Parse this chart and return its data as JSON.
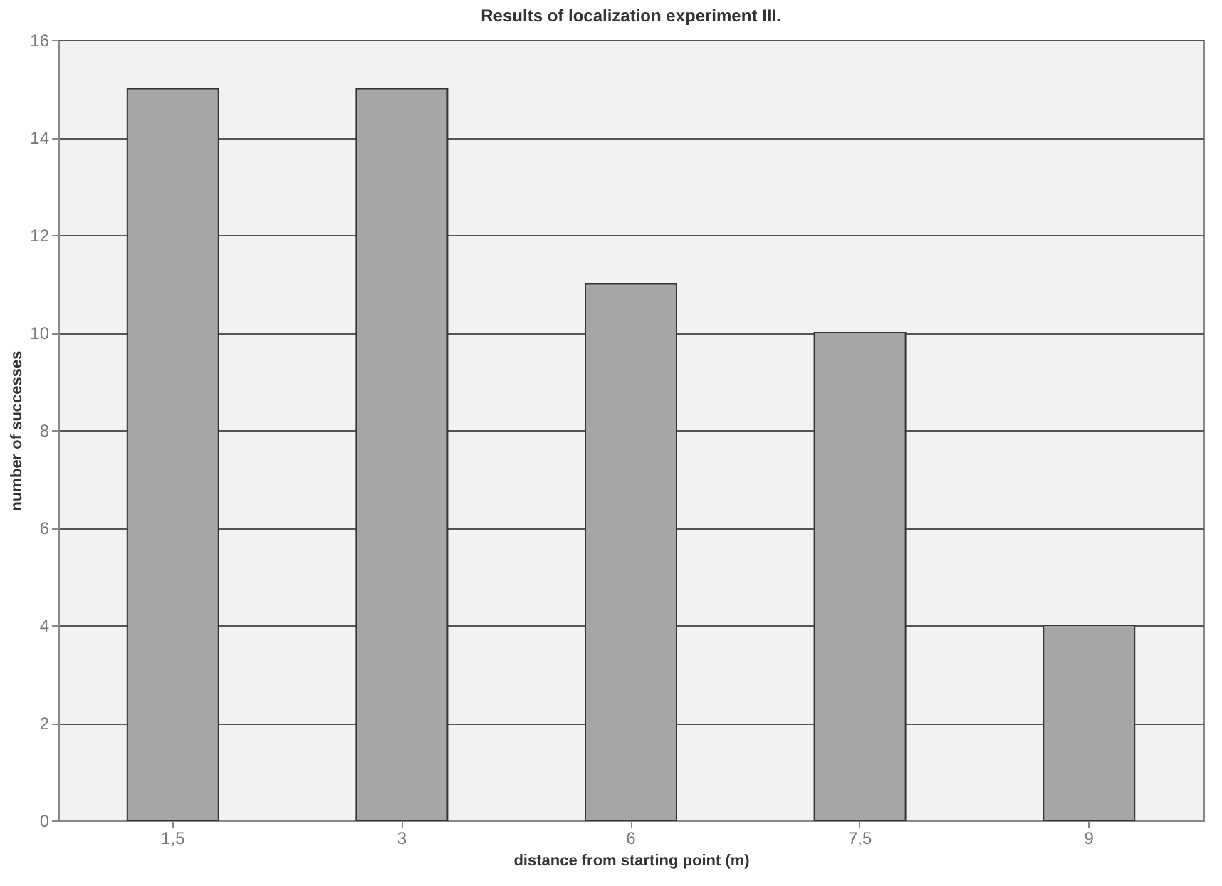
{
  "chart_data": {
    "type": "bar",
    "title": "Results of localization experiment III.",
    "xlabel": "distance from starting point (m)",
    "ylabel": "number of successes",
    "categories": [
      "1,5",
      "3",
      "6",
      "7,5",
      "9"
    ],
    "values": [
      15,
      15,
      11,
      10,
      4
    ],
    "color": "#a6a6a6",
    "ylim": [
      0,
      16
    ],
    "yticks": [
      0,
      2,
      4,
      6,
      8,
      10,
      12,
      14,
      16
    ],
    "grid": "y"
  }
}
